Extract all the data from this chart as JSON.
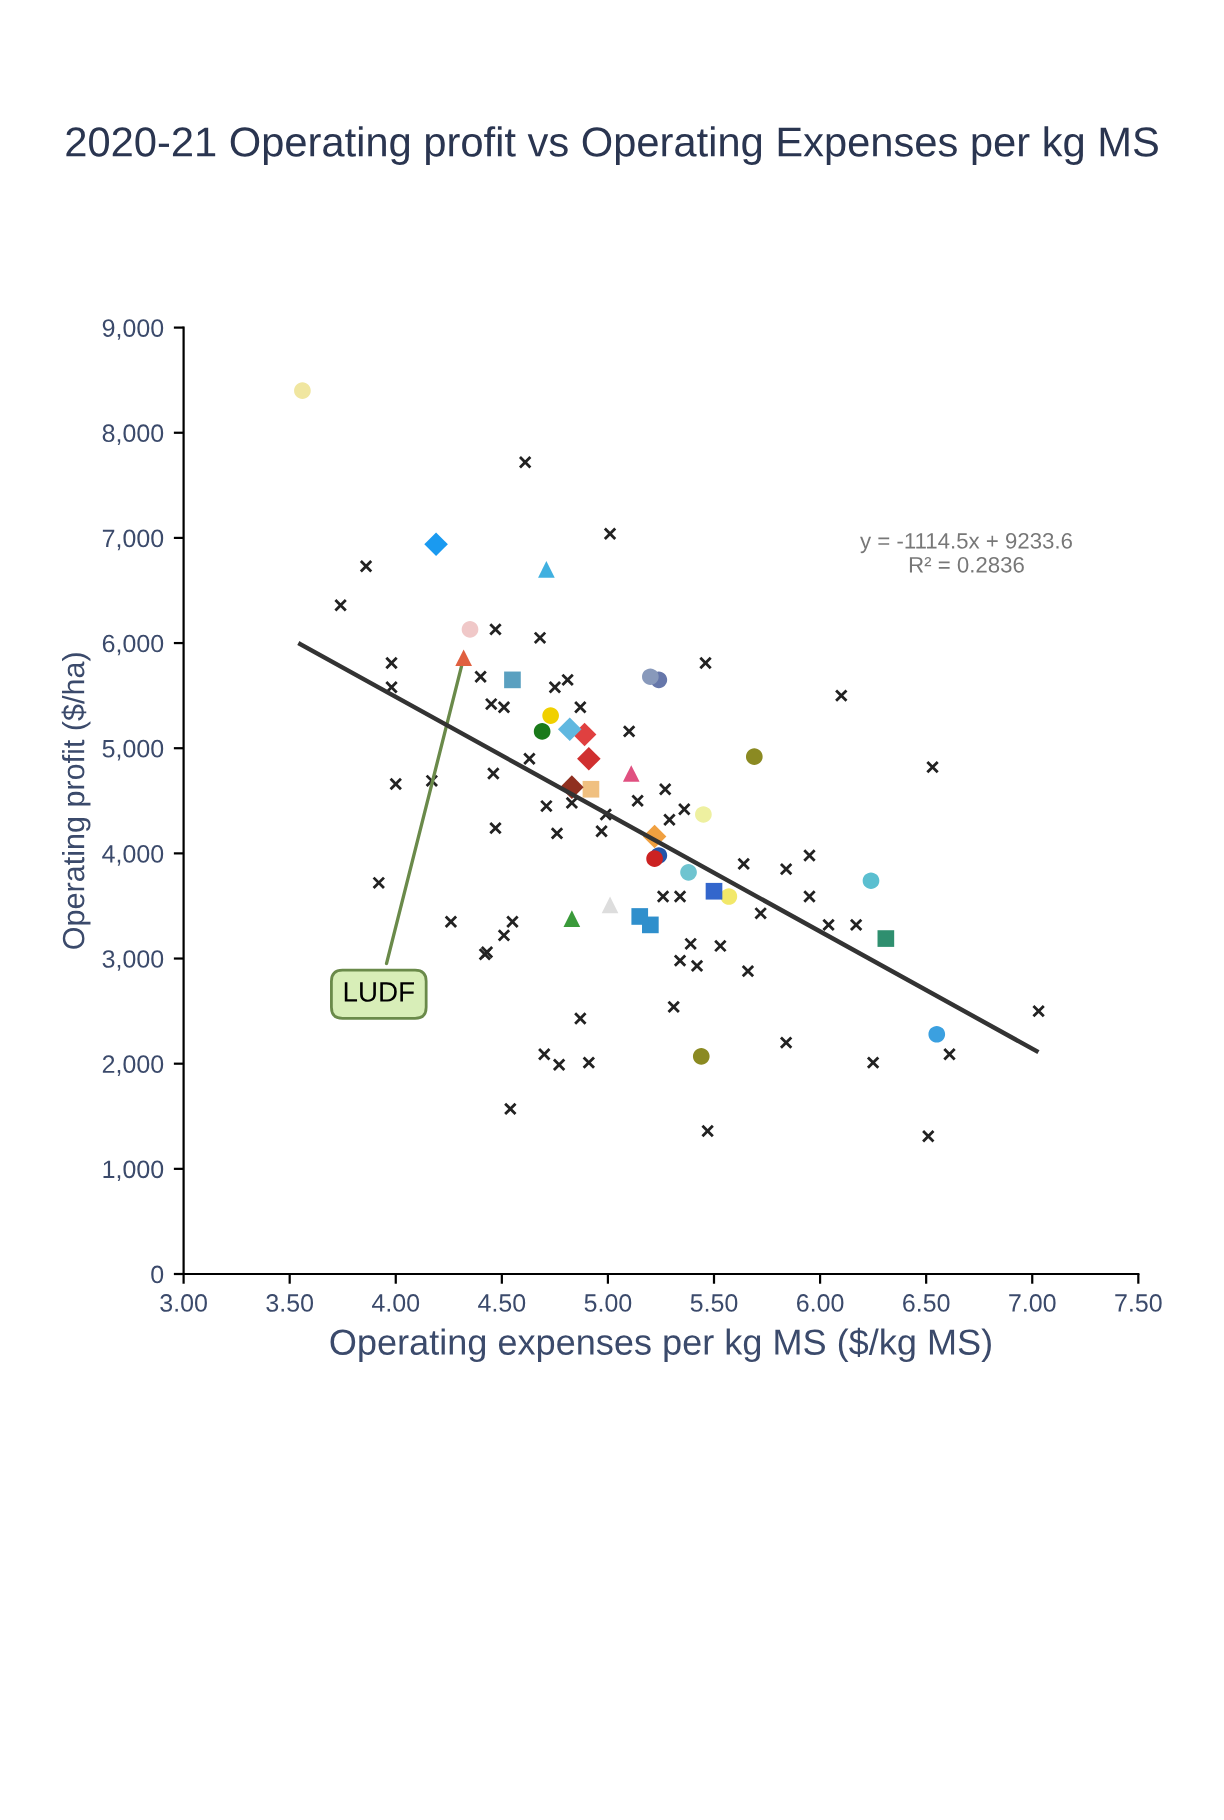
{
  "chart_data": {
    "type": "scatter",
    "title": "2020-21 Operating profit vs Operating Expenses per kg MS",
    "xlabel": "Operating expenses per kg MS ($/kg MS)",
    "ylabel": "Operating profit ($/ha)",
    "xlim": [
      3,
      7.5
    ],
    "xticks": [
      {
        "value": 3,
        "label": "3.00"
      },
      {
        "value": 3.5,
        "label": "3.50"
      },
      {
        "value": 4,
        "label": "4.00"
      },
      {
        "value": 4.5,
        "label": "4.50"
      },
      {
        "value": 5,
        "label": "5.00"
      },
      {
        "value": 5.5,
        "label": "5.50"
      },
      {
        "value": 6,
        "label": "6.00"
      },
      {
        "value": 6.5,
        "label": "6.50"
      },
      {
        "value": 7,
        "label": "7.00"
      },
      {
        "value": 7.5,
        "label": "7.50"
      }
    ],
    "ylim": [
      0,
      9000
    ],
    "yticks": [
      0,
      {
        "value": 1000,
        "label": "1,000"
      },
      {
        "value": 2000,
        "label": "2,000"
      },
      {
        "value": 3000,
        "label": "3,000"
      },
      {
        "value": 4000,
        "label": "4,000"
      },
      {
        "value": 5000,
        "label": "5,000"
      },
      {
        "value": 6000,
        "label": "6,000"
      },
      {
        "value": 7000,
        "label": "7,000"
      },
      {
        "value": 8000,
        "label": "8,000"
      },
      {
        "value": 9000,
        "label": "9,000"
      }
    ],
    "grid": false,
    "legend": false,
    "series": [
      {
        "marker": "cross",
        "color": "#222222",
        "x": [
          7.03,
          6.61,
          6.51,
          6.53,
          6.25,
          6.1,
          6.17,
          6.04,
          5.95,
          5.95,
          5.84,
          5.84,
          5.72,
          5.66,
          5.64,
          5.53,
          5.46,
          5.47,
          5.39,
          5.42,
          5.34,
          5.36,
          5.34,
          5.31,
          5.29,
          5.27,
          5.26,
          5.14,
          5.1,
          5.01,
          4.99,
          4.97,
          4.91,
          4.87,
          4.87,
          4.83,
          4.81,
          4.75,
          4.76,
          4.77,
          4.71,
          4.68,
          4.7,
          4.61,
          4.63,
          4.51,
          4.55,
          4.51,
          4.54,
          4.47,
          4.45,
          4.46,
          4.47,
          4.43,
          4.4,
          4.42,
          4.26,
          4.17,
          3.98,
          3.98,
          4.0,
          3.92,
          3.86,
          3.74
        ],
        "values": [
          2500,
          2090,
          1310,
          4820,
          2010,
          5500,
          3320,
          3320,
          3980,
          3590,
          3850,
          2200,
          3430,
          2880,
          3900,
          3120,
          5810,
          1360,
          3140,
          2930,
          2980,
          4420,
          3590,
          2540,
          4320,
          4610,
          3590,
          4500,
          5160,
          7040,
          4370,
          4210,
          2010,
          5390,
          2430,
          4480,
          5650,
          5580,
          4190,
          1990,
          4450,
          6050,
          2090,
          7720,
          4900,
          5390,
          3350,
          3220,
          1570,
          6130,
          5420,
          4760,
          4240,
          3060,
          5680,
          3040,
          3350,
          4690,
          5810,
          5580,
          4660,
          3720,
          6730,
          6360
        ]
      },
      {
        "marker": "circle",
        "x": [
          5.69,
          5.57,
          5.45,
          5.38,
          5.24,
          5.22,
          5.24,
          5.2,
          5.44,
          4.69,
          4.73,
          4.35,
          6.55,
          6.24,
          3.56
        ],
        "values": [
          4920,
          3590,
          4370,
          3820,
          3980,
          3950,
          5650,
          5680,
          2070,
          5160,
          5310,
          6130,
          2280,
          3740,
          8400
        ],
        "colors": [
          "#8b8a22",
          "#f2e86a",
          "#eef0a0",
          "#6fc4d0",
          "#2255aa",
          "#cc2222",
          "#6677aa",
          "#8899bb",
          "#8b8a22",
          "#1a7a1a",
          "#f0d000",
          "#f0c8c8",
          "#3ba0e0",
          "#5bbfd0",
          "#f0e6a0"
        ]
      },
      {
        "marker": "square",
        "x": [
          6.31,
          5.5,
          5.2,
          5.15,
          4.92,
          4.55
        ],
        "values": [
          3190,
          3640,
          3320,
          3400,
          4610,
          5650
        ],
        "colors": [
          "#2f8f6f",
          "#3366cc",
          "#2f8fcc",
          "#2f8fcc",
          "#f0c080",
          "#5aa0c0"
        ]
      },
      {
        "marker": "triangle",
        "x": [
          5.11,
          5.01,
          4.83,
          4.71,
          4.32
        ],
        "values": [
          4760,
          3510,
          3380,
          6700,
          5860
        ],
        "colors": [
          "#e05080",
          "#dddddd",
          "#3a9a3a",
          "#40b0e0",
          "#e06040"
        ]
      },
      {
        "marker": "diamond",
        "x": [
          5.22,
          4.91,
          4.89,
          4.82,
          4.83,
          4.19
        ],
        "values": [
          4160,
          4900,
          5130,
          5180,
          4630,
          6940
        ],
        "colors": [
          "#f0a040",
          "#d03030",
          "#e04040",
          "#60b8e0",
          "#903020",
          "#1a9af0"
        ]
      },
      {
        "type": "line",
        "line_style": "solid",
        "color": "#333333",
        "x": [
          3.55,
          7.02
        ],
        "values": [
          5990,
          2120
        ]
      }
    ],
    "annotations": [
      "y = -1114.5x + 9233.6\nR² = 0.2836",
      {
        "text": "LUDF",
        "x": 4.32,
        "y": 5860
      }
    ]
  }
}
